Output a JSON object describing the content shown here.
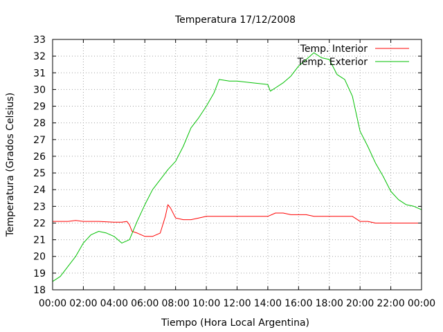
{
  "chart_data": {
    "type": "line",
    "title": "Temperatura 17/12/2008",
    "xlabel": "Tiempo (Hora Local Argentina)",
    "ylabel": "Temperatura (Grados Celsius)",
    "xlim": [
      "00:00",
      "24:00"
    ],
    "ylim": [
      18,
      33
    ],
    "x_ticks": [
      "00:00",
      "02:00",
      "04:00",
      "06:00",
      "08:00",
      "10:00",
      "12:00",
      "14:00",
      "16:00",
      "18:00",
      "20:00",
      "22:00",
      "00:00"
    ],
    "y_ticks": [
      "18",
      "19",
      "20",
      "21",
      "22",
      "23",
      "24",
      "25",
      "26",
      "27",
      "28",
      "29",
      "30",
      "31",
      "32",
      "33"
    ],
    "grid": true,
    "legend": "top-right",
    "series": [
      {
        "name": "Temp. Interior",
        "color": "#ff0000",
        "x": [
          "00:00",
          "00:30",
          "01:00",
          "01:30",
          "02:00",
          "03:00",
          "04:00",
          "04:30",
          "04:50",
          "05:00",
          "05:10",
          "05:30",
          "06:00",
          "06:30",
          "07:00",
          "07:20",
          "07:30",
          "07:40",
          "08:00",
          "08:30",
          "09:00",
          "09:30",
          "10:00",
          "11:00",
          "12:00",
          "13:00",
          "14:00",
          "14:30",
          "15:00",
          "15:30",
          "16:00",
          "16:30",
          "17:00",
          "17:30",
          "18:00",
          "18:30",
          "19:00",
          "19:30",
          "20:00",
          "20:30",
          "21:00",
          "21:30",
          "22:00",
          "23:00",
          "23:30",
          "24:00"
        ],
        "y": [
          22.1,
          22.1,
          22.1,
          22.15,
          22.1,
          22.1,
          22.05,
          22.05,
          22.1,
          21.9,
          21.5,
          21.4,
          21.2,
          21.2,
          21.4,
          22.4,
          23.1,
          22.9,
          22.3,
          22.2,
          22.2,
          22.3,
          22.4,
          22.4,
          22.4,
          22.4,
          22.4,
          22.6,
          22.6,
          22.5,
          22.5,
          22.5,
          22.4,
          22.4,
          22.4,
          22.4,
          22.4,
          22.4,
          22.1,
          22.1,
          22.0,
          22.0,
          22.0,
          22.0,
          22.0,
          22.0
        ]
      },
      {
        "name": "Temp. Exterior",
        "color": "#00c000",
        "x": [
          "00:00",
          "00:30",
          "01:00",
          "01:30",
          "02:00",
          "02:30",
          "03:00",
          "03:30",
          "04:00",
          "04:30",
          "05:00",
          "05:30",
          "06:00",
          "06:30",
          "07:00",
          "07:30",
          "08:00",
          "08:30",
          "09:00",
          "09:30",
          "10:00",
          "10:30",
          "10:50",
          "11:30",
          "12:00",
          "13:00",
          "14:00",
          "14:10",
          "14:30",
          "15:00",
          "15:30",
          "16:00",
          "16:30",
          "17:00",
          "17:30",
          "18:00",
          "18:30",
          "19:00",
          "19:30",
          "20:00",
          "20:30",
          "21:00",
          "21:30",
          "22:00",
          "22:30",
          "23:00",
          "23:30",
          "24:00"
        ],
        "y": [
          18.5,
          18.8,
          19.4,
          20.0,
          20.8,
          21.3,
          21.5,
          21.4,
          21.2,
          20.8,
          21.0,
          22.1,
          23.1,
          24.0,
          24.6,
          25.2,
          25.7,
          26.6,
          27.7,
          28.3,
          29.0,
          29.8,
          30.6,
          30.5,
          30.5,
          30.4,
          30.3,
          29.9,
          30.1,
          30.4,
          30.8,
          31.4,
          31.8,
          32.2,
          31.9,
          31.8,
          30.9,
          30.6,
          29.6,
          27.5,
          26.6,
          25.6,
          24.8,
          23.9,
          23.4,
          23.1,
          23.0,
          22.8
        ]
      }
    ]
  }
}
